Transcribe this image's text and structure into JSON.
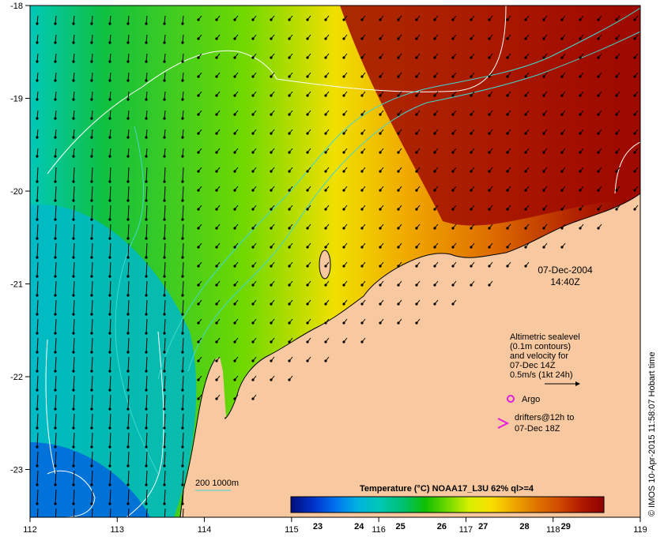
{
  "map": {
    "date_line": "07-Dec-2004",
    "time_line": "14:40Z",
    "x_ticks": [
      "112",
      "113",
      "114",
      "115",
      "116",
      "117",
      "118",
      "119"
    ],
    "y_ticks": [
      "-18",
      "-19",
      "-20",
      "-21",
      "-22",
      "-23"
    ],
    "legend": {
      "sealevel_lines": [
        "Altimetric sealevel",
        "(0.1m contours)",
        "and velocity for",
        "07-Dec 14Z",
        "0.5m/s (1kt 24h)"
      ],
      "argo_label": "Argo",
      "drifters_lines": [
        "drifters@12h to",
        "07-Dec 18Z"
      ],
      "isobath_label": "200  1000m"
    },
    "colorbar": {
      "title": "Temperature (°C) NOAA17_L3U 62% ql>=4",
      "ticks": [
        "23",
        "24",
        "25",
        "26",
        "27",
        "28",
        "29"
      ],
      "colors": [
        "#00107a",
        "#0030c8",
        "#0070f0",
        "#00b0e0",
        "#00c8b8",
        "#00c070",
        "#10c000",
        "#70d800",
        "#d8f000",
        "#f8e000",
        "#f0a800",
        "#e07800",
        "#d04800",
        "#b01800",
        "#8e0000"
      ]
    },
    "credit": "© IMOS 10-Apr-2015 11:58:07 Hobart time",
    "colors": {
      "land": "#f8c9a0",
      "sealevel_contour": "#ffffff",
      "isobath": "#40d8d0",
      "argo": "#e020e0",
      "drifter": "#e020e0"
    }
  }
}
